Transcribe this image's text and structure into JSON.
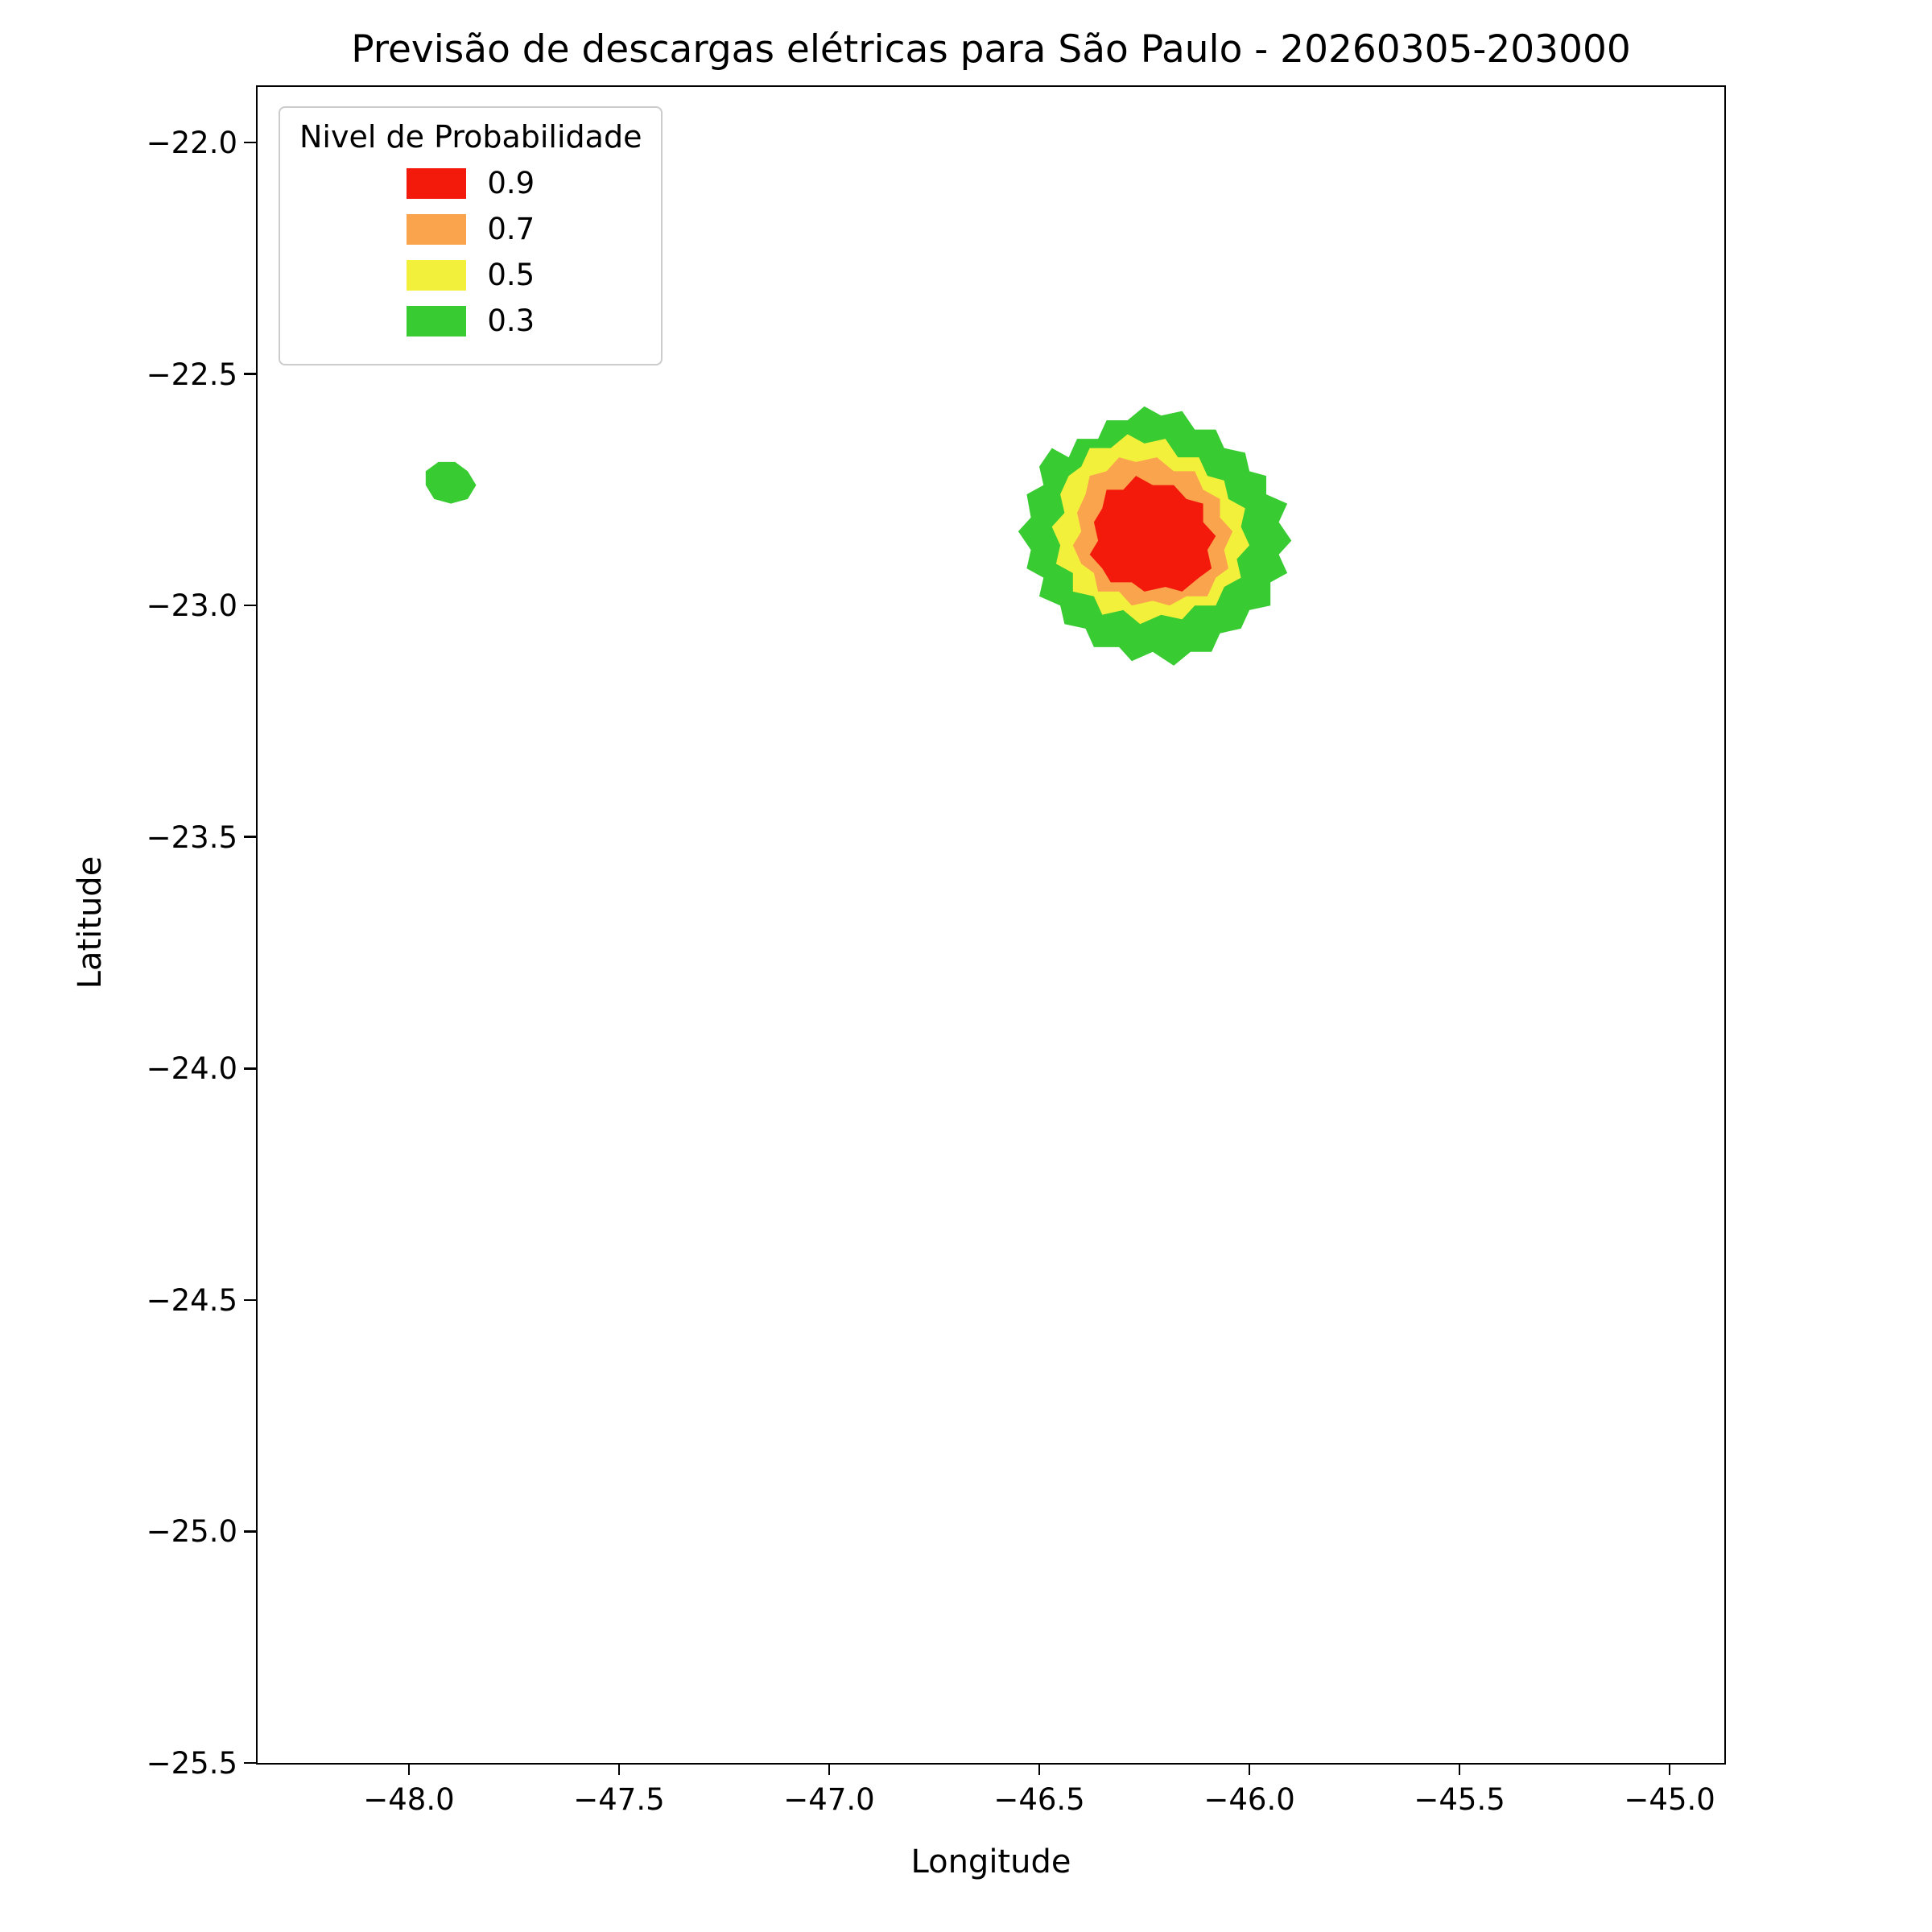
{
  "figure": {
    "title": "Previsão de descargas elétricas para São Paulo - 20260305-203000",
    "xlabel": "Longitude",
    "ylabel": "Latitude"
  },
  "legend": {
    "title": "Nivel de Probabilidade",
    "entries": [
      {
        "label": "0.9",
        "color": "#f31a0c"
      },
      {
        "label": "0.7",
        "color": "#fba44e"
      },
      {
        "label": "0.5",
        "color": "#f3f03c"
      },
      {
        "label": "0.3",
        "color": "#38cb32"
      }
    ]
  },
  "chart_data": {
    "type": "filled_contour",
    "title": "Previsão de descargas elétricas para São Paulo - 20260305-203000",
    "xlabel": "Longitude",
    "ylabel": "Latitude",
    "xlim": [
      -48.36,
      -44.87
    ],
    "ylim": [
      -25.5,
      -21.88
    ],
    "xticks": [
      -48.0,
      -47.5,
      -47.0,
      -46.5,
      -46.0,
      -45.5,
      -45.0
    ],
    "xtick_labels": [
      "−48.0",
      "−47.5",
      "−47.0",
      "−46.5",
      "−46.0",
      "−45.5",
      "−45.0"
    ],
    "yticks": [
      -22.0,
      -22.5,
      -23.0,
      -23.5,
      -24.0,
      -24.5,
      -25.0,
      -25.5
    ],
    "ytick_labels": [
      "−22.0",
      "−22.5",
      "−23.0",
      "−23.5",
      "−24.0",
      "−24.5",
      "−25.0",
      "−25.5"
    ],
    "grid": false,
    "legend_position": "upper left",
    "levels": [
      0.3,
      0.5,
      0.7,
      0.9
    ],
    "level_colors": {
      "0.3": "#38cb32",
      "0.5": "#f3f03c",
      "0.7": "#fba44e",
      "0.9": "#f31a0c"
    },
    "regions": [
      {
        "name": "main-cell-p0.3",
        "level": 0.3,
        "color": "#38cb32",
        "approx_center": [
          -46.22,
          -22.85
        ],
        "polygon": [
          [
            -46.47,
            -22.66
          ],
          [
            -46.5,
            -22.7
          ],
          [
            -46.49,
            -22.74
          ],
          [
            -46.53,
            -22.76
          ],
          [
            -46.52,
            -22.81
          ],
          [
            -46.55,
            -22.84
          ],
          [
            -46.52,
            -22.88
          ],
          [
            -46.53,
            -22.92
          ],
          [
            -46.49,
            -22.94
          ],
          [
            -46.5,
            -22.98
          ],
          [
            -46.45,
            -23.0
          ],
          [
            -46.44,
            -23.04
          ],
          [
            -46.39,
            -23.05
          ],
          [
            -46.37,
            -23.09
          ],
          [
            -46.31,
            -23.09
          ],
          [
            -46.28,
            -23.12
          ],
          [
            -46.23,
            -23.1
          ],
          [
            -46.18,
            -23.13
          ],
          [
            -46.14,
            -23.1
          ],
          [
            -46.09,
            -23.1
          ],
          [
            -46.07,
            -23.06
          ],
          [
            -46.02,
            -23.05
          ],
          [
            -46.0,
            -23.01
          ],
          [
            -45.95,
            -23.0
          ],
          [
            -45.95,
            -22.95
          ],
          [
            -45.91,
            -22.93
          ],
          [
            -45.93,
            -22.89
          ],
          [
            -45.9,
            -22.86
          ],
          [
            -45.93,
            -22.82
          ],
          [
            -45.91,
            -22.78
          ],
          [
            -45.96,
            -22.76
          ],
          [
            -45.96,
            -22.72
          ],
          [
            -46.0,
            -22.71
          ],
          [
            -46.01,
            -22.67
          ],
          [
            -46.06,
            -22.66
          ],
          [
            -46.08,
            -22.62
          ],
          [
            -46.13,
            -22.62
          ],
          [
            -46.16,
            -22.58
          ],
          [
            -46.21,
            -22.59
          ],
          [
            -46.25,
            -22.57
          ],
          [
            -46.29,
            -22.6
          ],
          [
            -46.34,
            -22.6
          ],
          [
            -46.36,
            -22.64
          ],
          [
            -46.41,
            -22.64
          ],
          [
            -46.43,
            -22.68
          ]
        ]
      },
      {
        "name": "main-cell-p0.5",
        "level": 0.5,
        "color": "#f3f03c",
        "approx_center": [
          -46.23,
          -22.84
        ],
        "polygon": [
          [
            -46.43,
            -22.72
          ],
          [
            -46.45,
            -22.76
          ],
          [
            -46.44,
            -22.8
          ],
          [
            -46.47,
            -22.83
          ],
          [
            -46.45,
            -22.87
          ],
          [
            -46.46,
            -22.91
          ],
          [
            -46.42,
            -22.93
          ],
          [
            -46.42,
            -22.97
          ],
          [
            -46.37,
            -22.98
          ],
          [
            -46.35,
            -23.02
          ],
          [
            -46.3,
            -23.01
          ],
          [
            -46.26,
            -23.04
          ],
          [
            -46.21,
            -23.02
          ],
          [
            -46.16,
            -23.03
          ],
          [
            -46.13,
            -23.0
          ],
          [
            -46.08,
            -23.0
          ],
          [
            -46.06,
            -22.96
          ],
          [
            -46.02,
            -22.94
          ],
          [
            -46.03,
            -22.9
          ],
          [
            -46.0,
            -22.87
          ],
          [
            -46.02,
            -22.83
          ],
          [
            -46.01,
            -22.79
          ],
          [
            -46.05,
            -22.77
          ],
          [
            -46.06,
            -22.73
          ],
          [
            -46.1,
            -22.72
          ],
          [
            -46.12,
            -22.68
          ],
          [
            -46.17,
            -22.68
          ],
          [
            -46.2,
            -22.64
          ],
          [
            -46.25,
            -22.65
          ],
          [
            -46.29,
            -22.63
          ],
          [
            -46.33,
            -22.66
          ],
          [
            -46.38,
            -22.66
          ],
          [
            -46.4,
            -22.7
          ]
        ]
      },
      {
        "name": "main-cell-p0.7",
        "level": 0.7,
        "color": "#fba44e",
        "approx_center": [
          -46.23,
          -22.84
        ],
        "polygon": [
          [
            -46.39,
            -22.76
          ],
          [
            -46.41,
            -22.8
          ],
          [
            -46.4,
            -22.84
          ],
          [
            -46.42,
            -22.87
          ],
          [
            -46.4,
            -22.91
          ],
          [
            -46.37,
            -22.93
          ],
          [
            -46.36,
            -22.97
          ],
          [
            -46.31,
            -22.97
          ],
          [
            -46.28,
            -23.0
          ],
          [
            -46.23,
            -22.99
          ],
          [
            -46.19,
            -23.0
          ],
          [
            -46.15,
            -22.98
          ],
          [
            -46.1,
            -22.98
          ],
          [
            -46.08,
            -22.94
          ],
          [
            -46.05,
            -22.92
          ],
          [
            -46.06,
            -22.88
          ],
          [
            -46.04,
            -22.84
          ],
          [
            -46.07,
            -22.81
          ],
          [
            -46.07,
            -22.77
          ],
          [
            -46.11,
            -22.75
          ],
          [
            -46.13,
            -22.71
          ],
          [
            -46.18,
            -22.71
          ],
          [
            -46.22,
            -22.68
          ],
          [
            -46.27,
            -22.69
          ],
          [
            -46.31,
            -22.68
          ],
          [
            -46.34,
            -22.71
          ],
          [
            -46.38,
            -22.72
          ]
        ]
      },
      {
        "name": "main-cell-p0.9",
        "level": 0.9,
        "color": "#f31a0c",
        "approx_center": [
          -46.23,
          -22.86
        ],
        "polygon": [
          [
            -46.35,
            -22.79
          ],
          [
            -46.37,
            -22.82
          ],
          [
            -46.36,
            -22.86
          ],
          [
            -46.38,
            -22.89
          ],
          [
            -46.35,
            -22.92
          ],
          [
            -46.33,
            -22.95
          ],
          [
            -46.28,
            -22.95
          ],
          [
            -46.25,
            -22.97
          ],
          [
            -46.2,
            -22.96
          ],
          [
            -46.16,
            -22.97
          ],
          [
            -46.12,
            -22.94
          ],
          [
            -46.09,
            -22.92
          ],
          [
            -46.1,
            -22.88
          ],
          [
            -46.08,
            -22.85
          ],
          [
            -46.11,
            -22.82
          ],
          [
            -46.11,
            -22.78
          ],
          [
            -46.15,
            -22.77
          ],
          [
            -46.18,
            -22.74
          ],
          [
            -46.23,
            -22.74
          ],
          [
            -46.27,
            -22.72
          ],
          [
            -46.3,
            -22.75
          ],
          [
            -46.34,
            -22.75
          ]
        ]
      },
      {
        "name": "small-cell-p0.3",
        "level": 0.3,
        "color": "#38cb32",
        "approx_center": [
          -47.9,
          -22.74
        ],
        "polygon": [
          [
            -47.96,
            -22.71
          ],
          [
            -47.93,
            -22.69
          ],
          [
            -47.89,
            -22.69
          ],
          [
            -47.86,
            -22.71
          ],
          [
            -47.84,
            -22.74
          ],
          [
            -47.86,
            -22.77
          ],
          [
            -47.9,
            -22.78
          ],
          [
            -47.94,
            -22.77
          ],
          [
            -47.96,
            -22.74
          ]
        ]
      }
    ]
  }
}
